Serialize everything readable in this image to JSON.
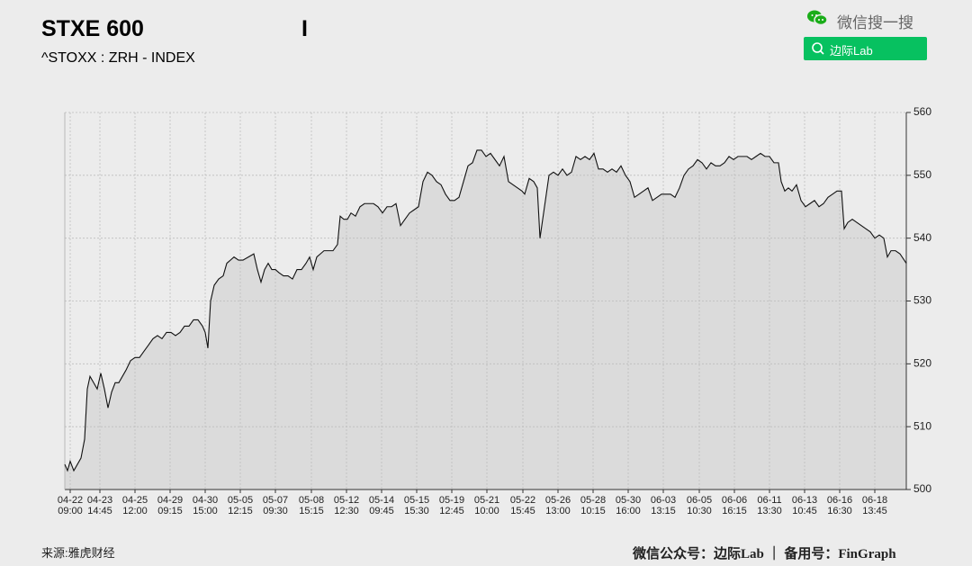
{
  "header": {
    "title": "STXE 600",
    "cursor": "I",
    "subtitle": "^STOXX : ZRH - INDEX",
    "search_brand": "微信搜一搜",
    "search_button": "边际Lab"
  },
  "footer": {
    "source": "来源:雅虎财经",
    "credit": "微信公众号：边际Lab ｜ 备用号：FinGraph"
  },
  "chart_data": {
    "type": "area",
    "color": "#111111",
    "fill": "#d9d9d9",
    "grid": true,
    "xlim": [
      0,
      935
    ],
    "xticks": [
      {
        "value": 6,
        "label": "04-22\n09:00"
      },
      {
        "value": 39,
        "label": "04-23\n14:45"
      },
      {
        "value": 78,
        "label": "04-25\n12:00"
      },
      {
        "value": 117,
        "label": "04-29\n09:15"
      },
      {
        "value": 156,
        "label": "04-30\n15:00"
      },
      {
        "value": 195,
        "label": "05-05\n12:15"
      },
      {
        "value": 234,
        "label": "05-07\n09:30"
      },
      {
        "value": 274,
        "label": "05-08\n15:15"
      },
      {
        "value": 313,
        "label": "05-12\n12:30"
      },
      {
        "value": 352,
        "label": "05-14\n09:45"
      },
      {
        "value": 391,
        "label": "05-15\n15:30"
      },
      {
        "value": 430,
        "label": "05-19\n12:45"
      },
      {
        "value": 469,
        "label": "05-21\n10:00"
      },
      {
        "value": 509,
        "label": "05-22\n15:45"
      },
      {
        "value": 548,
        "label": "05-26\n13:00"
      },
      {
        "value": 587,
        "label": "05-28\n10:15"
      },
      {
        "value": 626,
        "label": "05-30\n16:00"
      },
      {
        "value": 665,
        "label": "06-03\n13:15"
      },
      {
        "value": 705,
        "label": "06-05\n10:30"
      },
      {
        "value": 744,
        "label": "06-06\n16:15"
      },
      {
        "value": 783,
        "label": "06-11\n13:30"
      },
      {
        "value": 822,
        "label": "06-13\n10:45"
      },
      {
        "value": 861,
        "label": "06-16\n16:30"
      },
      {
        "value": 900,
        "label": "06-18\n13:45"
      }
    ],
    "ylim": [
      500,
      560
    ],
    "yticks": [
      500,
      510,
      520,
      530,
      540,
      550,
      560
    ],
    "x": [
      0,
      3,
      6,
      10,
      14,
      18,
      22,
      25,
      28,
      32,
      36,
      40,
      44,
      48,
      52,
      56,
      60,
      64,
      68,
      73,
      78,
      83,
      88,
      93,
      98,
      103,
      108,
      113,
      118,
      123,
      128,
      133,
      138,
      143,
      148,
      153,
      156,
      159,
      162,
      166,
      171,
      176,
      180,
      184,
      188,
      193,
      198,
      204,
      210,
      214,
      218,
      222,
      226,
      230,
      234,
      238,
      243,
      248,
      253,
      258,
      263,
      268,
      272,
      276,
      280,
      284,
      288,
      293,
      298,
      303,
      306,
      310,
      314,
      318,
      323,
      328,
      333,
      338,
      343,
      348,
      353,
      358,
      363,
      368,
      373,
      378,
      383,
      388,
      393,
      398,
      403,
      408,
      413,
      418,
      423,
      428,
      433,
      438,
      443,
      448,
      453,
      458,
      463,
      468,
      473,
      478,
      483,
      488,
      493,
      498,
      503,
      508,
      511,
      516,
      521,
      525,
      528,
      531,
      534,
      538,
      543,
      548,
      553,
      558,
      563,
      568,
      573,
      578,
      583,
      588,
      593,
      598,
      603,
      608,
      613,
      618,
      623,
      628,
      633,
      638,
      643,
      648,
      653,
      658,
      663,
      668,
      673,
      678,
      683,
      688,
      693,
      698,
      703,
      708,
      713,
      718,
      723,
      728,
      733,
      738,
      743,
      748,
      753,
      758,
      763,
      768,
      773,
      778,
      783,
      788,
      793,
      796,
      800,
      804,
      808,
      813,
      818,
      823,
      828,
      833,
      838,
      843,
      848,
      853,
      858,
      863,
      866,
      870,
      875,
      880,
      885,
      890,
      895,
      900,
      905,
      910,
      914,
      918,
      923,
      928,
      935
    ],
    "values": [
      504,
      503,
      504.5,
      503,
      504,
      505,
      508,
      516,
      518,
      517,
      516,
      518.5,
      516,
      513,
      515.5,
      517,
      517,
      518,
      519,
      520.5,
      521,
      521,
      522,
      523,
      524,
      524.5,
      524,
      525,
      525,
      524.5,
      525,
      526,
      526,
      527,
      527,
      526,
      525,
      522.5,
      530,
      532.5,
      533.5,
      534,
      536,
      536.5,
      537,
      536.5,
      536.5,
      537,
      537.5,
      535,
      533,
      535,
      536,
      535,
      535,
      534.5,
      534,
      534,
      533.5,
      535,
      535,
      536,
      537,
      535,
      537,
      537.5,
      538,
      538,
      538,
      539,
      543.5,
      543,
      543,
      544,
      543.5,
      545,
      545.5,
      545.5,
      545.5,
      545,
      544,
      545,
      545,
      545.5,
      542,
      543,
      544,
      544.5,
      545,
      549,
      550.5,
      550,
      549,
      548.5,
      547,
      546,
      546,
      546.5,
      549,
      551.5,
      552,
      554,
      554,
      553,
      553.5,
      552.5,
      551.5,
      553,
      549,
      548.5,
      548,
      547.5,
      547,
      549.5,
      549,
      548,
      540,
      543,
      546,
      550,
      550.5,
      550,
      551,
      550,
      550.5,
      553,
      552.5,
      553,
      552.5,
      553.5,
      551,
      551,
      550.5,
      551,
      550.5,
      551.5,
      550,
      549,
      546.5,
      547,
      547.5,
      548,
      546,
      546.5,
      547,
      547,
      547,
      546.5,
      548,
      550,
      551,
      551.5,
      552.5,
      552,
      551,
      552,
      551.5,
      551.5,
      552,
      553,
      552.5,
      553,
      553,
      553,
      552.5,
      553,
      553.5,
      553,
      553,
      552,
      552,
      549,
      547.5,
      548,
      547.5,
      548.5,
      546,
      545,
      545.5,
      546,
      545,
      545.5,
      546.5,
      547,
      547.5,
      547.5,
      541.5,
      542.5,
      543,
      542.5,
      542,
      541.5,
      541,
      540,
      540.5,
      540,
      537,
      538,
      538,
      537.5,
      536
    ]
  }
}
